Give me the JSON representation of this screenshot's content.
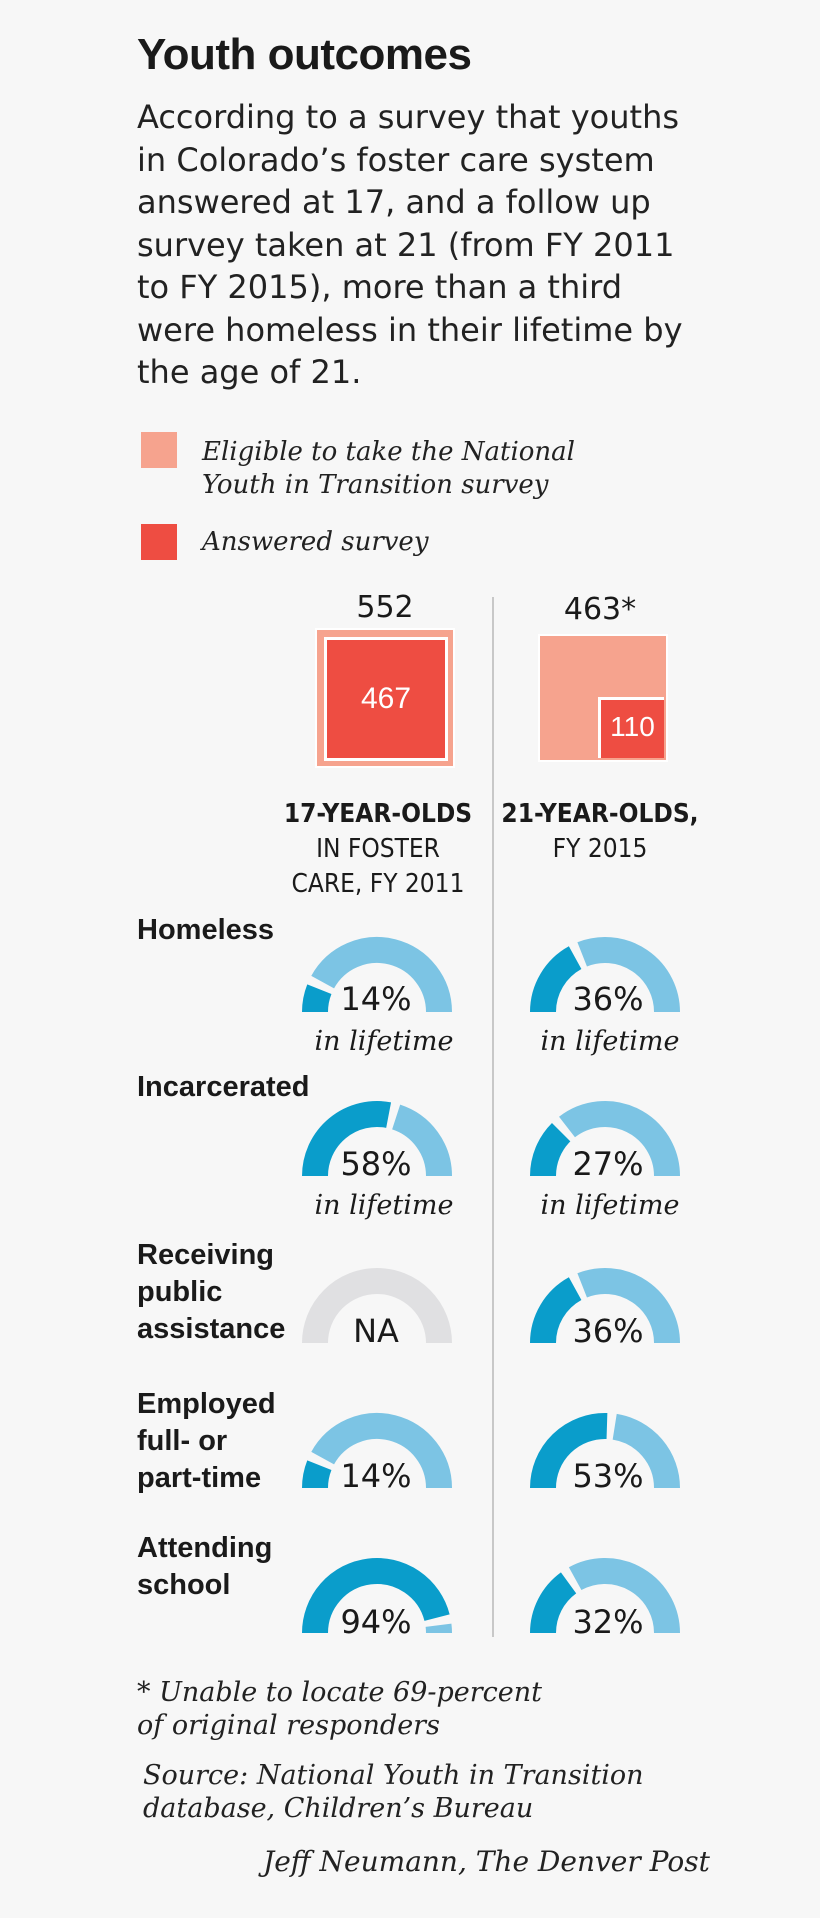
{
  "title": "Youth outcomes",
  "intro": "According to a survey that youths in Colorado’s foster care system answered at 17, and a follow up survey taken at 21 (from FY 2011 to FY 2015), more than a third were homeless in their lifetime by the age of 21.",
  "legend": {
    "eligible": "Eligible to take the National Youth in Transition survey",
    "answered": "Answered survey",
    "eligible_color": "#f6a38e",
    "answered_color": "#ee4d42"
  },
  "groups": {
    "g17": {
      "eligible_label": "552",
      "answered_label": "467",
      "head_bold": "17-YEAR-OLDS",
      "head_rest_1": "IN FOSTER",
      "head_rest_2": "CARE, FY 2011"
    },
    "g21": {
      "eligible_label": "463*",
      "answered_label": "110",
      "head_bold": "21-YEAR-OLDS,",
      "head_rest_1": "FY 2015"
    }
  },
  "chart_data": {
    "type": "gauge",
    "squares": [
      {
        "group": "17-year-olds in foster care, FY 2011",
        "eligible": 552,
        "answered": 467
      },
      {
        "group": "21-year-olds, FY 2015",
        "eligible": 463,
        "answered": 110
      }
    ],
    "rows": [
      {
        "label": "Homeless",
        "v17": 14,
        "v21": 36,
        "sub17": "in lifetime",
        "sub21": "in lifetime"
      },
      {
        "label": "Incarcerated",
        "v17": 58,
        "v21": 27,
        "sub17": "in lifetime",
        "sub21": "in lifetime"
      },
      {
        "label": "Receiving public assistance",
        "v17": null,
        "v21": 36
      },
      {
        "label": "Employed full- or part-time",
        "v17": 14,
        "v21": 53
      },
      {
        "label": "Attending school",
        "v17": 94,
        "v21": 32
      }
    ],
    "na_text": "NA",
    "colors": {
      "filled": "#0a9dcb",
      "empty": "#7cc4e4",
      "na": "#e0e0e2"
    }
  },
  "row_labels": {
    "homeless": "Homeless",
    "incarcerated": "Incarcerated",
    "assistance_1": "Receiving",
    "assistance_2": "public",
    "assistance_3": "assistance",
    "employed_1": "Employed",
    "employed_2": "full- or",
    "employed_3": "part-time",
    "school_1": "Attending",
    "school_2": "school"
  },
  "pct_text": {
    "homeless17": "14%",
    "homeless21": "36%",
    "incarcerated17": "58%",
    "incarcerated21": "27%",
    "assistance17": "NA",
    "assistance21": "36%",
    "employed17": "14%",
    "employed21": "53%",
    "school17": "94%",
    "school21": "32%"
  },
  "sub_text": "in lifetime",
  "footnote": {
    "line1": "* Unable to locate 69-percent",
    "line2": "of original responders"
  },
  "source": {
    "line1": "Source: National Youth in Transition",
    "line2": "database, Children’s Bureau"
  },
  "credit": "Jeff Neumann, The Denver Post"
}
